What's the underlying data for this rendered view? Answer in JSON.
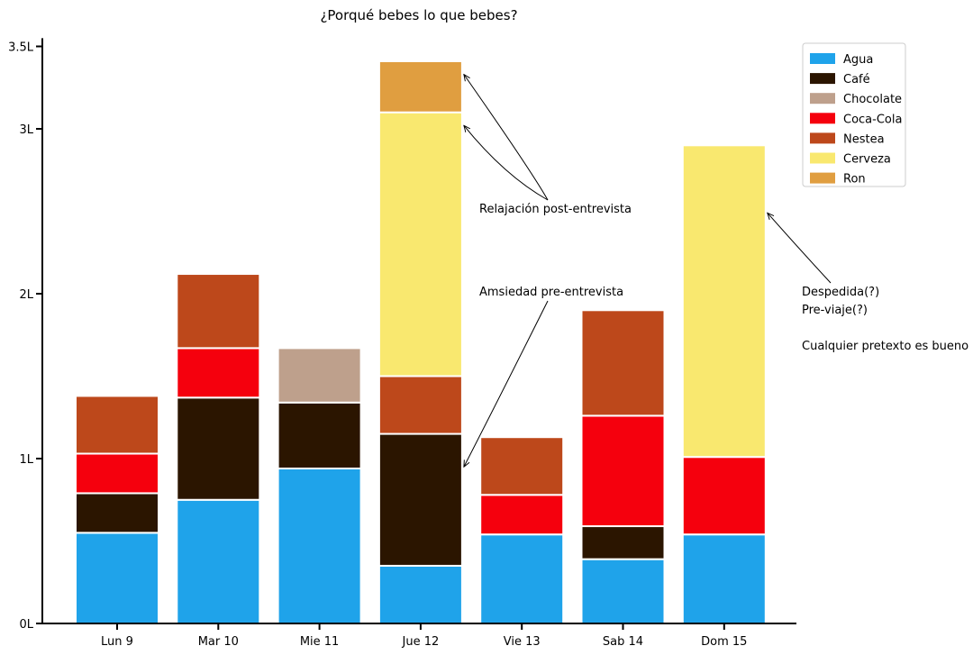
{
  "chart_data": {
    "type": "bar",
    "stacked": true,
    "title": "¿Porqué bebes lo que bebes?",
    "xlabel": "",
    "ylabel": "",
    "categories": [
      "Lun 9",
      "Mar 10",
      "Mie 11",
      "Jue 12",
      "Vie 13",
      "Sab 14",
      "Dom 15"
    ],
    "ylim": [
      0,
      3.55
    ],
    "yticks": [
      0,
      1,
      2,
      3,
      3.5
    ],
    "ytick_labels": [
      "0L",
      "1L",
      "2L",
      "3L",
      "3.5L"
    ],
    "grid": false,
    "legend": "top-right",
    "series": [
      {
        "name": "Agua",
        "color": "#1fa3ea",
        "values": [
          0.55,
          0.75,
          0.94,
          0.35,
          0.54,
          0.39,
          0.54
        ]
      },
      {
        "name": "Café",
        "color": "#2b1500",
        "values": [
          0.24,
          0.62,
          0.4,
          0.8,
          0.0,
          0.2,
          0.0
        ]
      },
      {
        "name": "Chocolate",
        "color": "#bea08c",
        "values": [
          0.0,
          0.0,
          0.33,
          0.0,
          0.0,
          0.0,
          0.0
        ]
      },
      {
        "name": "Coca-Cola",
        "color": "#f5000d",
        "values": [
          0.24,
          0.3,
          0.0,
          0.0,
          0.24,
          0.67,
          0.47
        ]
      },
      {
        "name": "Nestea",
        "color": "#bd481b",
        "values": [
          0.35,
          0.45,
          0.0,
          0.35,
          0.35,
          0.64,
          0.0
        ]
      },
      {
        "name": "Cerveza",
        "color": "#f9e86f",
        "values": [
          0.0,
          0.0,
          0.0,
          1.6,
          0.0,
          0.0,
          1.89
        ]
      },
      {
        "name": "Ron",
        "color": "#e09e40",
        "values": [
          0.0,
          0.0,
          0.0,
          0.31,
          0.0,
          0.0,
          0.0
        ]
      }
    ],
    "annotations": [
      {
        "lines": [
          "Relajación post-entrevista"
        ],
        "points_to": [
          {
            "category": "Jue 12",
            "y": 3.33
          },
          {
            "category": "Jue 12",
            "y": 3.02
          }
        ]
      },
      {
        "lines": [
          "Amsiedad pre-entrevista"
        ],
        "points_to": [
          {
            "category": "Jue 12",
            "y": 0.95
          }
        ]
      },
      {
        "lines": [
          "Despedida(?)",
          "Pre-viaje(?)",
          "",
          "Cualquier pretexto es bueno"
        ],
        "points_to": [
          {
            "category": "Dom 15",
            "y": 2.49
          }
        ]
      }
    ]
  }
}
